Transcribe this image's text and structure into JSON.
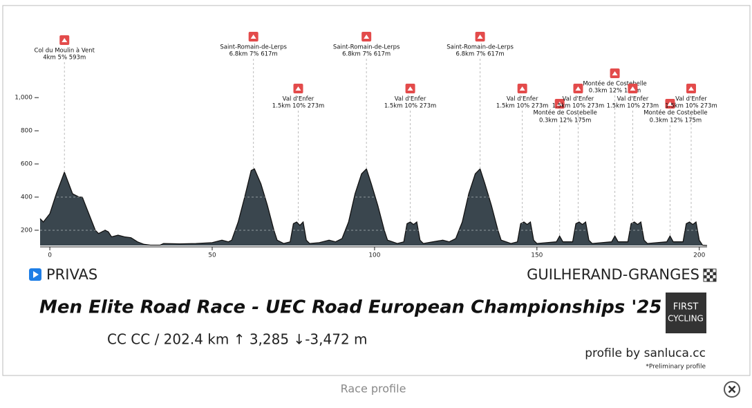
{
  "chart_data": {
    "type": "area",
    "title": "Men Elite Road Race - UEC Road European Championships '25",
    "start": "PRIVAS",
    "finish": "GUILHERAND-GRANGES",
    "stats": "CC CC / 202.4 km  ↑ 3,285 ↓-3,472 m",
    "credit": "profile by sanluca.cc",
    "note": "*Preliminary profile",
    "logo": [
      "FIRST",
      "CYCLING"
    ],
    "color": "#3a464e",
    "xlim": [
      -3,
      202.4
    ],
    "xticks": [
      0,
      50,
      100,
      150,
      200
    ],
    "ylim": [
      108,
      1130
    ],
    "yticks": [
      {
        "value": 1000,
        "label": "1,000"
      },
      800,
      600,
      400,
      200
    ],
    "grid": true,
    "x": [
      -3,
      -2,
      0,
      2,
      4.5,
      7,
      9,
      10,
      12,
      14,
      15,
      16,
      17,
      18,
      19,
      21,
      23,
      25,
      27,
      29,
      31,
      34,
      35,
      40,
      45,
      50,
      53,
      55,
      56,
      58,
      60,
      62,
      63,
      65,
      67,
      69,
      70,
      72,
      74,
      75,
      76,
      77,
      78,
      79,
      80,
      83,
      86,
      88,
      90,
      92,
      94,
      96,
      97.5,
      99,
      101,
      103,
      104,
      107,
      109,
      110,
      111,
      112,
      113,
      114,
      115,
      118,
      121,
      123,
      125,
      127,
      129,
      131,
      132.5,
      134,
      136,
      138,
      139,
      142,
      144,
      145,
      146,
      147,
      148,
      149,
      150,
      153,
      156,
      157,
      158,
      161,
      162,
      163,
      164,
      165,
      166,
      167,
      170,
      173,
      174,
      175,
      178,
      179,
      180,
      181,
      182,
      183,
      184,
      187,
      190,
      191,
      192,
      195,
      196,
      197,
      198,
      199,
      200,
      201,
      202.4
    ],
    "values": [
      270,
      250,
      300,
      420,
      550,
      420,
      400,
      400,
      300,
      200,
      180,
      190,
      200,
      190,
      160,
      170,
      160,
      155,
      130,
      115,
      110,
      110,
      120,
      118,
      120,
      125,
      140,
      130,
      140,
      250,
      400,
      560,
      570,
      480,
      350,
      200,
      140,
      120,
      130,
      240,
      250,
      230,
      250,
      140,
      120,
      125,
      140,
      130,
      150,
      250,
      420,
      540,
      570,
      480,
      350,
      200,
      140,
      120,
      130,
      240,
      250,
      235,
      250,
      140,
      120,
      130,
      140,
      130,
      150,
      250,
      420,
      540,
      570,
      480,
      350,
      200,
      140,
      120,
      130,
      240,
      250,
      235,
      250,
      140,
      120,
      125,
      130,
      165,
      130,
      130,
      240,
      250,
      235,
      250,
      140,
      120,
      125,
      130,
      165,
      130,
      130,
      240,
      250,
      235,
      250,
      140,
      120,
      125,
      130,
      165,
      130,
      130,
      240,
      250,
      235,
      250,
      140,
      110,
      108
    ],
    "climbs": [
      {
        "name": "Col du Moulin à Vent",
        "info": "4km 5% 593m",
        "km": 4.5
      },
      {
        "name": "Saint-Romain-de-Lerps",
        "info": "6.8km 7% 617m",
        "km": 62.7
      },
      {
        "name": "Val d'Enfer",
        "info": "1.5km 10% 273m",
        "km": 76.5
      },
      {
        "name": "Saint-Romain-de-Lerps",
        "info": "6.8km 7% 617m",
        "km": 97.5
      },
      {
        "name": "Val d'Enfer",
        "info": "1.5km 10% 273m",
        "km": 111
      },
      {
        "name": "Saint-Romain-de-Lerps",
        "info": "6.8km 7% 617m",
        "km": 132.5
      },
      {
        "name": "Val d'Enfer",
        "info": "1.5km 10% 273m",
        "km": 145.5
      },
      {
        "name": "Montée de Costebelle",
        "info": "0.3km 12% 175m",
        "km": 157
      },
      {
        "name": "Val d'Enfer",
        "info": "1.5km 10% 273m",
        "km": 162.7
      },
      {
        "name": "Montée de Costebelle",
        "info": "0.3km 12% 175m",
        "km": 174
      },
      {
        "name": "Val d'Enfer",
        "info": "1.5km 10% 273m",
        "km": 179.5
      },
      {
        "name": "Montée de Costebelle",
        "info": "0.3km 12% 175m",
        "km": 191
      },
      {
        "name": "Val d'Enfer",
        "info": "1.5km 10% 273m",
        "km": 197.5
      }
    ]
  },
  "caption": "Race profile"
}
